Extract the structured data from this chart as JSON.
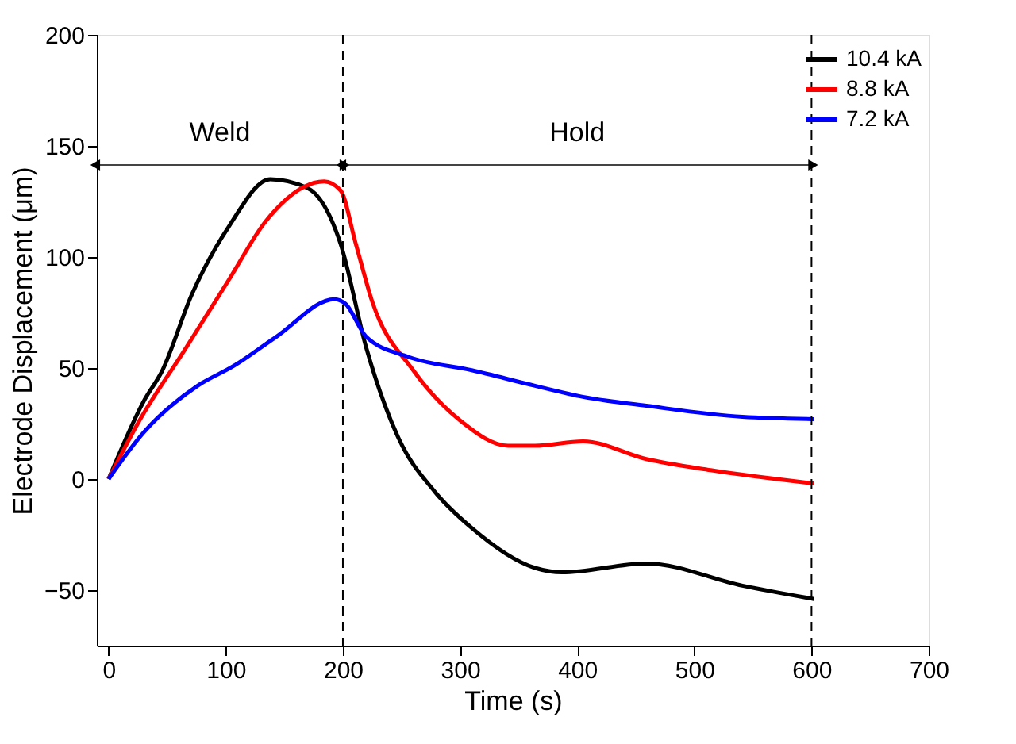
{
  "chart_data": {
    "type": "line",
    "xlabel": "Time (s)",
    "ylabel": "Electrode Displacement (μm)",
    "xlim": [
      -10,
      700
    ],
    "xticks": [
      0,
      100,
      200,
      300,
      400,
      500,
      600,
      700
    ],
    "ylim": [
      -75,
      200
    ],
    "yticks": [
      -50,
      0,
      50,
      100,
      150,
      200
    ],
    "grid": false,
    "legend": "top right",
    "line_style": "solid",
    "marker": "none",
    "series": [
      {
        "name": "10.4 kA",
        "color": "#000000",
        "x": [
          0,
          30,
          46,
          71,
          103,
          138,
          170,
          198,
          220,
          247,
          279,
          310,
          364,
          387,
          459,
          541,
          602
        ],
        "values": [
          0,
          35,
          49,
          83,
          114,
          135,
          131,
          106,
          59,
          19,
          -6,
          -22,
          -40,
          -42,
          -38,
          -48,
          -54
        ]
      },
      {
        "name": "8.8 kA",
        "color": "#ff0000",
        "x": [
          0,
          26,
          66,
          103,
          134,
          184,
          198,
          211,
          225,
          260,
          301,
          341,
          364,
          405,
          459,
          514,
          602
        ],
        "values": [
          0,
          26,
          59,
          90,
          116,
          134,
          130,
          106,
          80,
          49,
          26,
          15,
          15,
          17,
          9,
          4,
          -2
        ]
      },
      {
        "name": "7.2 kA",
        "color": "#0000ff",
        "x": [
          0,
          30,
          76,
          107,
          143,
          193,
          202,
          220,
          256,
          310,
          364,
          405,
          459,
          541,
          602
        ],
        "values": [
          0,
          21,
          42,
          51,
          64,
          81,
          79,
          64,
          55,
          49,
          42,
          37,
          33,
          28,
          27
        ]
      }
    ],
    "ref_lines": [
      {
        "axis": "x",
        "value": 200,
        "line_style": "dashed"
      },
      {
        "axis": "x",
        "value": 600,
        "line_style": "dashed"
      }
    ],
    "annotations": [
      "Weld",
      "Hold"
    ]
  }
}
